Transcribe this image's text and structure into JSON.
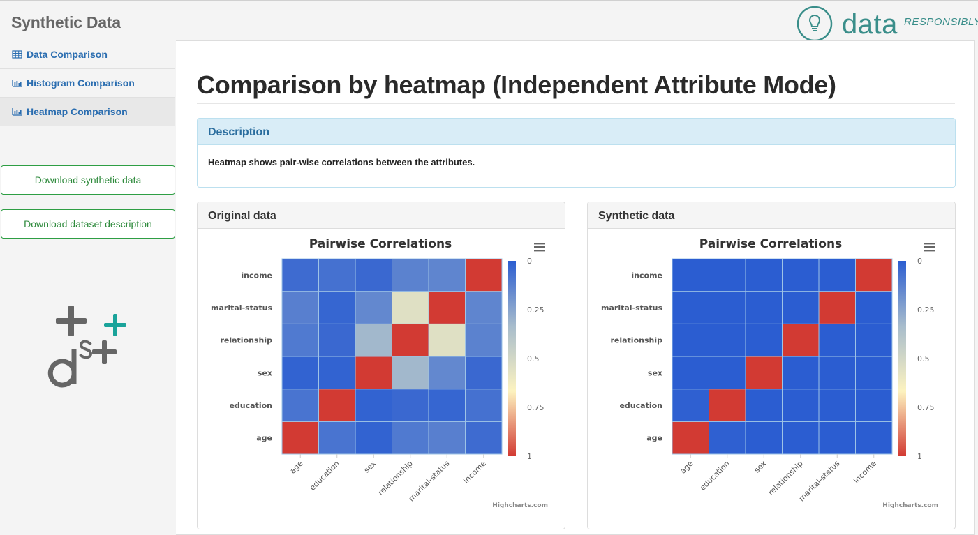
{
  "app": {
    "title": "Synthetic Data",
    "logo_word": "data",
    "logo_sub": "RESPONSIBLY"
  },
  "sidebar": {
    "items": [
      {
        "label": "Data Comparison",
        "icon": "table-icon",
        "active": false
      },
      {
        "label": "Histogram Comparison",
        "icon": "bar-chart-icon",
        "active": false
      },
      {
        "label": "Heatmap Comparison",
        "icon": "bar-chart-icon",
        "active": true
      }
    ],
    "download_synthetic": "Download synthetic data",
    "download_description": "Download dataset description"
  },
  "main": {
    "title": "Comparison by heatmap (Independent Attribute Mode)",
    "description_header": "Description",
    "description_body": "Heatmap shows pair-wise correlations between the attributes."
  },
  "panels": {
    "original_label": "Original data",
    "synthetic_label": "Synthetic data"
  },
  "chart_data": [
    {
      "type": "heatmap",
      "panel": "Original data",
      "title": "Pairwise Correlations",
      "x_categories": [
        "age",
        "education",
        "sex",
        "relationship",
        "marital-status",
        "income"
      ],
      "y_categories": [
        "age",
        "education",
        "sex",
        "relationship",
        "marital-status",
        "income"
      ],
      "color_axis": {
        "min": 0,
        "max": 1,
        "ticks": [
          "0",
          "0.25",
          "0.5",
          "0.75",
          "1"
        ],
        "colors": [
          "#2b5dd1",
          "#a7bccc",
          "#fdf3c0",
          "#d23a33"
        ]
      },
      "values": [
        [
          1,
          0.08,
          0.02,
          0.1,
          0.12,
          0.05
        ],
        [
          0.08,
          1,
          0.02,
          0.04,
          0.03,
          0.07
        ],
        [
          0.02,
          0.02,
          1,
          0.32,
          0.15,
          0.04
        ],
        [
          0.1,
          0.04,
          0.32,
          1,
          0.55,
          0.13
        ],
        [
          0.12,
          0.03,
          0.15,
          0.55,
          1,
          0.14
        ],
        [
          0.05,
          0.07,
          0.04,
          0.13,
          0.14,
          1
        ]
      ],
      "credit": "Highcharts.com"
    },
    {
      "type": "heatmap",
      "panel": "Synthetic data",
      "title": "Pairwise Correlations",
      "x_categories": [
        "age",
        "education",
        "sex",
        "relationship",
        "marital-status",
        "income"
      ],
      "y_categories": [
        "age",
        "education",
        "sex",
        "relationship",
        "marital-status",
        "income"
      ],
      "color_axis": {
        "min": 0,
        "max": 1,
        "ticks": [
          "0",
          "0.25",
          "0.5",
          "0.75",
          "1"
        ],
        "colors": [
          "#2b5dd1",
          "#a7bccc",
          "#fdf3c0",
          "#d23a33"
        ]
      },
      "values": [
        [
          1,
          0.01,
          0,
          0,
          0,
          0
        ],
        [
          0.01,
          1,
          0,
          0,
          0,
          0
        ],
        [
          0,
          0,
          1,
          0,
          0,
          0
        ],
        [
          0,
          0,
          0,
          1,
          0,
          0
        ],
        [
          0,
          0,
          0,
          0,
          1,
          0
        ],
        [
          0,
          0,
          0,
          0,
          0,
          1
        ]
      ],
      "credit": "Highcharts.com"
    }
  ]
}
